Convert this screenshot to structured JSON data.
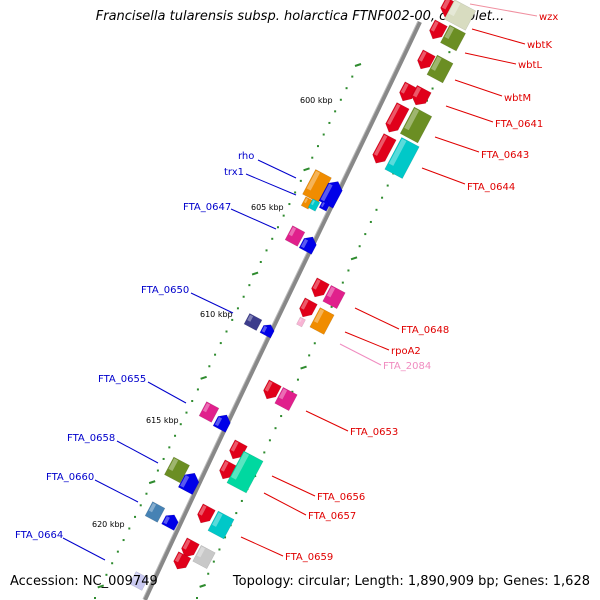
{
  "title": "Francisella tularensis subsp. holarctica FTNF002-00, complet...",
  "footer": {
    "accession": "Accession: NC_009749",
    "topology": "Topology: circular; Length: 1,890,909 bp; Genes: 1,628"
  },
  "colors": {
    "backbone": "#888888",
    "forward_label": "#0000cc",
    "reverse_label": "#e00000",
    "rna_label": "#f08cc0",
    "tick": "#2e8b2e",
    "red": "#e0001a",
    "olive": "#6b8e23",
    "orange": "#f08c00",
    "blue": "#0000e8",
    "magenta": "#e0208c",
    "cyan": "#00c8c8",
    "teal": "#00d8a0",
    "navy": "#3c3c8c",
    "grey": "#c8c8c8",
    "beige": "#d8dcc0",
    "steel": "#4682b4",
    "pink": "#f8b4d4",
    "violet": "#c8c8f0"
  },
  "backbone_scale": {
    "kbp_labels": [
      "600 kbp",
      "605 kbp",
      "610 kbp",
      "615 kbp",
      "620 kbp"
    ]
  },
  "forward_genes": [
    {
      "label": "rho",
      "color": "forward_label"
    },
    {
      "label": "trx1",
      "color": "forward_label"
    },
    {
      "label": "FTA_0647",
      "color": "forward_label"
    },
    {
      "label": "FTA_0650",
      "color": "forward_label"
    },
    {
      "label": "FTA_0655",
      "color": "forward_label"
    },
    {
      "label": "FTA_0658",
      "color": "forward_label"
    },
    {
      "label": "FTA_0660",
      "color": "forward_label"
    },
    {
      "label": "FTA_0664",
      "color": "forward_label"
    }
  ],
  "reverse_genes": [
    {
      "label": "wzx",
      "color": "reverse_label"
    },
    {
      "label": "wbtK",
      "color": "reverse_label"
    },
    {
      "label": "wbtL",
      "color": "reverse_label"
    },
    {
      "label": "wbtM",
      "color": "reverse_label"
    },
    {
      "label": "FTA_0641",
      "color": "reverse_label"
    },
    {
      "label": "FTA_0643",
      "color": "reverse_label"
    },
    {
      "label": "FTA_0644",
      "color": "reverse_label"
    },
    {
      "label": "FTA_0648",
      "color": "reverse_label"
    },
    {
      "label": "rpoA2",
      "color": "reverse_label"
    },
    {
      "label": "FTA_2084",
      "color": "rna_label"
    },
    {
      "label": "FTA_0653",
      "color": "reverse_label"
    },
    {
      "label": "FTA_0656",
      "color": "reverse_label"
    },
    {
      "label": "FTA_0657",
      "color": "reverse_label"
    },
    {
      "label": "FTA_0659",
      "color": "reverse_label"
    }
  ]
}
